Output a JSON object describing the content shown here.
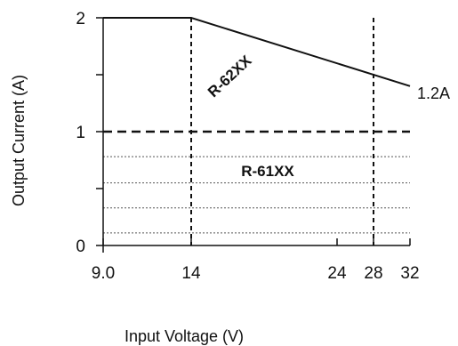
{
  "chart_data": {
    "type": "line",
    "xlabel": "Input Voltage (V)",
    "ylabel": "Output Current (A)",
    "x_ticks": [
      {
        "value": 9.0,
        "label": "9.0"
      },
      {
        "value": 14,
        "label": "14"
      },
      {
        "value": 24,
        "label": "24"
      },
      {
        "value": 28,
        "label": "28"
      },
      {
        "value": 32,
        "label": "32"
      }
    ],
    "y_ticks": [
      {
        "value": 0,
        "label": "0"
      },
      {
        "value": 1,
        "label": "1"
      },
      {
        "value": 2,
        "label": "2"
      }
    ],
    "y_minor_ticks": [
      0.5,
      1.5
    ],
    "xlim": [
      9.0,
      32
    ],
    "ylim": [
      0,
      2
    ],
    "series": [
      {
        "name": "R-62XX",
        "x": [
          9.0,
          14,
          32
        ],
        "y": [
          2,
          2,
          1.4
        ],
        "style": "solid"
      },
      {
        "name": "R-61XX",
        "x": [
          9.0,
          32
        ],
        "y": [
          1,
          1
        ],
        "style": "dashed"
      }
    ],
    "reference_lines": {
      "vertical": [
        14,
        28
      ],
      "horizontal_dotted": [
        0.78,
        0.55,
        0.33,
        0.11
      ]
    },
    "annotations": [
      {
        "text": "1.2A"
      }
    ],
    "colors": {
      "line": "#111111",
      "dotted": "#555555"
    }
  }
}
